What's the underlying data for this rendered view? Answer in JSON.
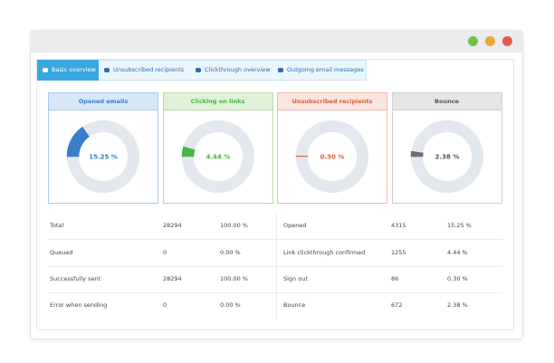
{
  "tabs": [
    "Basic overview",
    "Unsubscribed recipients",
    "Clickthrough overview",
    "Outgoing email messages"
  ],
  "cards": [
    {
      "title": "Opened emails",
      "value": 15.25,
      "value_label": "15.25 %",
      "color": "#3a7dc9"
    },
    {
      "title": "Clicking on links",
      "value": 4.44,
      "value_label": "4.44 %",
      "color": "#48b648"
    },
    {
      "title": "Unsubscribed recipients",
      "value": 0.3,
      "value_label": "0.30 %",
      "color": "#e35a3c"
    },
    {
      "title": "Bounce",
      "value": 2.38,
      "value_label": "2.38 %",
      "color": "#6e6e6e"
    }
  ],
  "rows": [
    [
      "Total",
      "28294",
      "100.00 %",
      "Opened",
      "4315",
      "15.25 %"
    ],
    [
      "Queued",
      "0",
      "0.00 %",
      "Link clickthrough confirmed",
      "1255",
      "4.44 %"
    ],
    [
      "Successfully sent",
      "28294",
      "100.00 %",
      "Sign out",
      "86",
      "0.30 %"
    ],
    [
      "Error when sending",
      "0",
      "0.00 %",
      "Bounce",
      "672",
      "2.38 %"
    ]
  ]
}
